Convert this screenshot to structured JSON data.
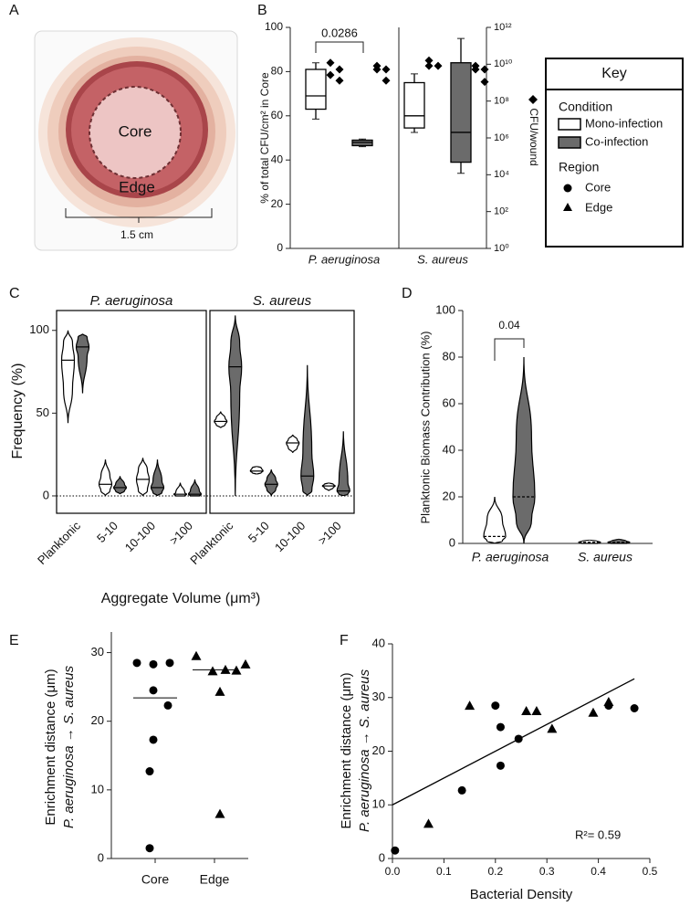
{
  "panel_labels": [
    "A",
    "B",
    "C",
    "D",
    "E",
    "F"
  ],
  "illustration": {
    "core": "Core",
    "edge": "Edge",
    "scale_label": "1.5 cm"
  },
  "key": {
    "title": "Key",
    "condition": "Condition",
    "region": "Region"
  },
  "chart_data": [
    {
      "type": "box",
      "ylabel": "% of total CFU/cm² in Core",
      "y2label": "CFU/wound",
      "categories": [
        "P. aeruginosa",
        "S. aureus"
      ],
      "ylim": [
        0,
        100
      ],
      "yticks": [
        0,
        20,
        40,
        60,
        80,
        100
      ],
      "y2lim": [
        1,
        1000000000000
      ],
      "y2log": true,
      "y2ticks": [
        {
          "value": 1,
          "label": "10⁰"
        },
        {
          "value": 100,
          "label": "10²"
        },
        {
          "value": 10000,
          "label": "10⁴"
        },
        {
          "value": 1000000,
          "label": "10⁶"
        },
        {
          "value": 100000000,
          "label": "10⁸"
        },
        {
          "value": 10000000000,
          "label": "10¹⁰"
        },
        {
          "value": 1000000000000,
          "label": "10¹²"
        }
      ],
      "series": [
        {
          "name": "Mono-infection",
          "color": "#ffffff",
          "boxes": [
            {
              "min": 58.5,
              "q1": 63,
              "median": 69,
              "q3": 81,
              "max": 84
            },
            {
              "min": 52.5,
              "q1": 54.5,
              "median": 60,
              "q3": 75,
              "max": 79
            }
          ],
          "cfu": {
            "axis": "y2",
            "values": [
              [
                12000000000,
                5200000000,
                2600000000,
                1300000000
              ],
              [
                16000000000,
                8100000000,
                8100000000
              ]
            ]
          }
        },
        {
          "name": "Co-infection",
          "color": "#6b6b6b",
          "boxes": [
            {
              "min": 46,
              "q1": 46.5,
              "median": 48,
              "q3": 49,
              "max": 49.5
            },
            {
              "min": 34,
              "q1": 39,
              "median": 52.5,
              "q3": 84,
              "max": 95
            }
          ],
          "cfu": {
            "axis": "y2",
            "values": [
              [
                8100000000,
                5200000000,
                5200000000,
                1300000000
              ],
              [
                8100000000,
                5200000000,
                5200000000,
                1100000000
              ]
            ]
          }
        }
      ],
      "annotation": "0.0286"
    },
    {
      "type": "violin",
      "ylabel": "Frequency (%)",
      "xlabel": "Aggregate Volume (μm³)",
      "categories": [
        "Planktonic",
        "5-10",
        "10-100",
        ">100"
      ],
      "ylim": [
        -10.5,
        112
      ],
      "yticks": [
        0,
        50,
        100
      ],
      "zero_line": true,
      "facets": [
        {
          "title": "P. aeruginosa",
          "series": [
            {
              "color": "#ffffff",
              "violins": [
                {
                  "min": 44,
                  "q1": 64,
                  "median": 82,
                  "q3": 93,
                  "max": 100
                },
                {
                  "min": 0,
                  "q1": 3,
                  "median": 7,
                  "q3": 12,
                  "max": 22
                },
                {
                  "min": 0,
                  "q1": 3,
                  "median": 10,
                  "q3": 16,
                  "max": 23
                },
                {
                  "min": 0,
                  "q1": 0,
                  "median": 1,
                  "q3": 2,
                  "max": 8
                }
              ]
            },
            {
              "color": "#6b6b6b",
              "violins": [
                {
                  "min": 62,
                  "q1": 84,
                  "median": 90,
                  "q3": 96,
                  "max": 98
                },
                {
                  "min": 1,
                  "q1": 3,
                  "median": 5,
                  "q3": 7,
                  "max": 12
                },
                {
                  "min": 0,
                  "q1": 2,
                  "median": 5,
                  "q3": 9,
                  "max": 22
                },
                {
                  "min": 0,
                  "q1": 0,
                  "median": 1,
                  "q3": 3,
                  "max": 10
                }
              ]
            }
          ]
        },
        {
          "title": "S. aureus",
          "series": [
            {
              "color": "#ffffff",
              "violins": [
                {
                  "min": 41,
                  "q1": 43,
                  "median": 45,
                  "q3": 47,
                  "max": 51
                },
                {
                  "min": 13,
                  "q1": 14,
                  "median": 15,
                  "q3": 17,
                  "max": 18
                },
                {
                  "min": 26,
                  "q1": 29,
                  "median": 32,
                  "q3": 34,
                  "max": 37
                },
                {
                  "min": 3,
                  "q1": 5,
                  "median": 6,
                  "q3": 7,
                  "max": 8
                }
              ]
            },
            {
              "color": "#6b6b6b",
              "violins": [
                {
                  "min": 0,
                  "q1": 62,
                  "median": 78,
                  "q3": 92,
                  "max": 109
                },
                {
                  "min": 0,
                  "q1": 4,
                  "median": 7,
                  "q3": 10,
                  "max": 16
                },
                {
                  "min": 0,
                  "q1": 3,
                  "median": 12,
                  "q3": 26,
                  "max": 79
                },
                {
                  "min": 0,
                  "q1": 1,
                  "median": 3,
                  "q3": 8,
                  "max": 39
                }
              ]
            }
          ]
        }
      ]
    },
    {
      "type": "violin",
      "ylabel": "Planktonic Biomass Contribution (%)",
      "categories": [
        "P. aeruginosa",
        "S. aureus"
      ],
      "ylim": [
        0,
        100
      ],
      "yticks": [
        0,
        20,
        40,
        60,
        80,
        100
      ],
      "series": [
        {
          "color": "#ffffff",
          "violins": [
            {
              "min": 0,
              "q1": 1,
              "median": 3,
              "q3": 10,
              "max": 20
            },
            {
              "min": 0,
              "q1": 0,
              "median": 0.5,
              "q3": 1,
              "max": 1.5
            }
          ]
        },
        {
          "color": "#6b6b6b",
          "violins": [
            {
              "min": 0,
              "q1": 10,
              "median": 20,
              "q3": 45,
              "max": 80
            },
            {
              "min": 0,
              "q1": 0,
              "median": 0.5,
              "q3": 1,
              "max": 2
            }
          ]
        }
      ],
      "annotation": "0.04"
    },
    {
      "type": "strip",
      "ylabel": [
        "Enrichment distance (μm)",
        "P. aeruginosa → S. aureus"
      ],
      "categories": [
        "Core",
        "Edge"
      ],
      "markers": [
        "circle",
        "triangle"
      ],
      "values": [
        [
          28.5,
          28.3,
          28.5,
          24.5,
          22.3,
          17.3,
          12.7,
          1.5
        ],
        [
          29.5,
          27.3,
          27.5,
          27.4,
          28.3,
          24.3,
          6.5
        ]
      ],
      "medians": [
        23.4,
        27.5
      ],
      "ylim": [
        0,
        33
      ],
      "yticks": [
        0,
        10,
        20,
        30
      ]
    },
    {
      "type": "scatter",
      "xlabel": "Bacterial Density",
      "ylabel": [
        "Enrichment distance (μm)",
        "P. aeruginosa → S. aureus"
      ],
      "series": [
        {
          "name": "Core",
          "marker": "circle",
          "x": [
            0.005,
            0.135,
            0.2,
            0.21,
            0.21,
            0.245,
            0.42,
            0.47
          ],
          "y": [
            1.5,
            12.7,
            28.5,
            24.5,
            17.3,
            22.3,
            28.5,
            28
          ]
        },
        {
          "name": "Edge",
          "marker": "triangle",
          "x": [
            0.07,
            0.15,
            0.26,
            0.28,
            0.31,
            0.39,
            0.42
          ],
          "y": [
            6.5,
            28.5,
            27.5,
            27.5,
            24.2,
            27.2,
            29.2
          ]
        }
      ],
      "fit": {
        "slope": 50,
        "intercept": 10,
        "x_range": [
          0,
          0.47
        ]
      },
      "annotation": "R²= 0.59",
      "xlim": [
        0,
        0.5
      ],
      "xticks": [
        {
          "value": 0,
          "label": "0.0"
        },
        0.1,
        0.2,
        0.3,
        0.4,
        0.5
      ],
      "ylim": [
        0,
        40
      ],
      "yticks": [
        0,
        10,
        20,
        30,
        40
      ]
    }
  ]
}
